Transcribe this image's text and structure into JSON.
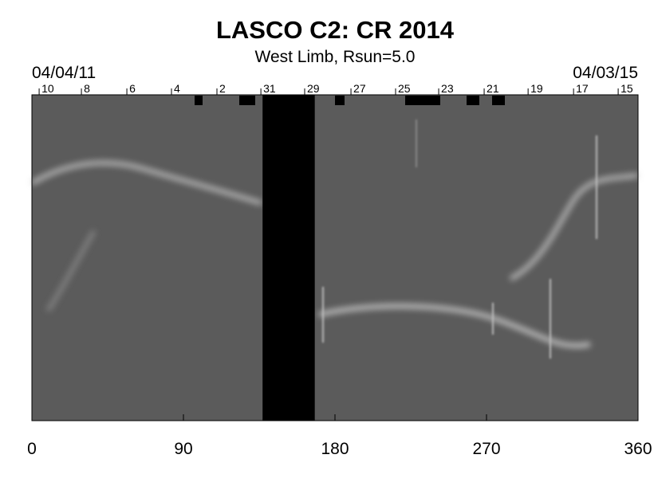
{
  "chart_data": {
    "type": "synoptic",
    "title": "LASCO C2: CR 2014",
    "subtitle": "West Limb, Rsun=5.0",
    "start_date": "04/04/11",
    "end_date": "04/03/15",
    "xlim": [
      0,
      360
    ],
    "xticks": [
      0,
      90,
      180,
      270,
      360
    ],
    "top_ticks": [
      {
        "value": 4.3,
        "label": "10"
      },
      {
        "value": 29.4,
        "label": "8"
      },
      {
        "value": 56.4,
        "label": "6"
      },
      {
        "value": 82.9,
        "label": "4"
      },
      {
        "value": 109.9,
        "label": "2"
      },
      {
        "value": 136.0,
        "label": "31"
      },
      {
        "value": 162.0,
        "label": "29"
      },
      {
        "value": 189.5,
        "label": "27"
      },
      {
        "value": 216.0,
        "label": "25"
      },
      {
        "value": 241.6,
        "label": "23"
      },
      {
        "value": 268.6,
        "label": "21"
      },
      {
        "value": 294.7,
        "label": "19"
      },
      {
        "value": 321.7,
        "label": "17"
      },
      {
        "value": 348.2,
        "label": "15"
      }
    ],
    "data_gap": [
      137,
      168
    ]
  }
}
